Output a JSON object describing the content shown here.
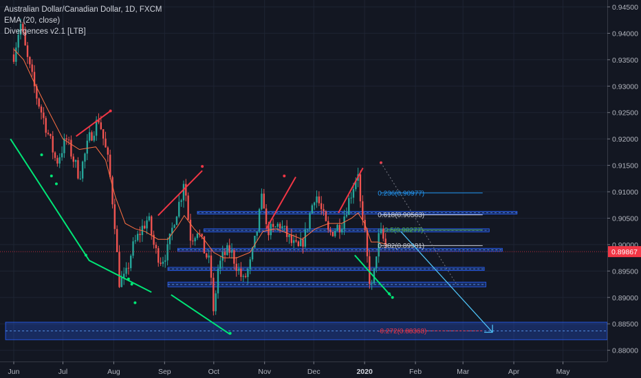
{
  "legend": {
    "symbol": "Australian Dollar/Canadian Dollar, 1D, FXCM",
    "ema": "EMA (20, close)",
    "div": "Divergences v2.1 [LTB]"
  },
  "chart_data": {
    "type": "candlestick",
    "ylim": [
      0.8775,
      0.9475
    ],
    "y_ticks": [
      "0.94500",
      "0.94000",
      "0.93500",
      "0.93000",
      "0.92500",
      "0.92000",
      "0.91500",
      "0.91000",
      "0.90500",
      "0.90000",
      "0.89500",
      "0.89000",
      "0.88500",
      "0.88000"
    ],
    "x_ticks": [
      {
        "label": "Jun",
        "d": 0
      },
      {
        "label": "Jul",
        "d": 30
      },
      {
        "label": "Aug",
        "d": 61
      },
      {
        "label": "Sep",
        "d": 92
      },
      {
        "label": "Oct",
        "d": 122
      },
      {
        "label": "Nov",
        "d": 153
      },
      {
        "label": "Dec",
        "d": 183
      },
      {
        "label": "2020",
        "d": 214,
        "bold": true
      },
      {
        "label": "Feb",
        "d": 245
      },
      {
        "label": "Mar",
        "d": 274
      },
      {
        "label": "Apr",
        "d": 305
      },
      {
        "label": "May",
        "d": 335
      }
    ],
    "current_price": {
      "label": "0.89867",
      "value": 0.89867,
      "color": "#f23645"
    },
    "close_path": [
      [
        0,
        0.936
      ],
      [
        4,
        0.942
      ],
      [
        8,
        0.9355
      ],
      [
        14,
        0.928
      ],
      [
        20,
        0.922
      ],
      [
        26,
        0.9155
      ],
      [
        32,
        0.92
      ],
      [
        40,
        0.913
      ],
      [
        46,
        0.92
      ],
      [
        52,
        0.924
      ],
      [
        58,
        0.915
      ],
      [
        62,
        0.903
      ],
      [
        64,
        0.893
      ],
      [
        68,
        0.8935
      ],
      [
        72,
        0.899
      ],
      [
        78,
        0.903
      ],
      [
        82,
        0.905
      ],
      [
        86,
        0.899
      ],
      [
        90,
        0.897
      ],
      [
        94,
        0.899
      ],
      [
        98,
        0.905
      ],
      [
        102,
        0.909
      ],
      [
        104,
        0.913
      ],
      [
        106,
        0.906
      ],
      [
        108,
        0.901
      ],
      [
        112,
        0.903
      ],
      [
        116,
        0.899
      ],
      [
        120,
        0.896
      ],
      [
        122,
        0.8855
      ],
      [
        124,
        0.895
      ],
      [
        128,
        0.898
      ],
      [
        132,
        0.899
      ],
      [
        136,
        0.896
      ],
      [
        140,
        0.893
      ],
      [
        144,
        0.896
      ],
      [
        148,
        0.902
      ],
      [
        152,
        0.91
      ],
      [
        154,
        0.903
      ],
      [
        158,
        0.9025
      ],
      [
        162,
        0.904
      ],
      [
        166,
        0.902
      ],
      [
        170,
        0.9
      ],
      [
        174,
        0.899
      ],
      [
        178,
        0.902
      ],
      [
        180,
        0.905
      ],
      [
        184,
        0.91
      ],
      [
        188,
        0.906
      ],
      [
        192,
        0.902
      ],
      [
        196,
        0.903
      ],
      [
        200,
        0.904
      ],
      [
        204,
        0.908
      ],
      [
        208,
        0.912
      ],
      [
        210,
        0.914
      ],
      [
        212,
        0.905
      ],
      [
        214,
        0.902
      ],
      [
        216,
        0.896
      ],
      [
        218,
        0.891
      ],
      [
        220,
        0.895
      ],
      [
        222,
        0.901
      ],
      [
        224,
        0.902
      ],
      [
        226,
        0.9005
      ],
      [
        228,
        0.899
      ]
    ],
    "ema_points": [
      [
        0,
        0.937
      ],
      [
        6,
        0.935
      ],
      [
        12,
        0.931
      ],
      [
        20,
        0.926
      ],
      [
        30,
        0.92
      ],
      [
        40,
        0.918
      ],
      [
        50,
        0.9185
      ],
      [
        56,
        0.916
      ],
      [
        62,
        0.909
      ],
      [
        68,
        0.904
      ],
      [
        74,
        0.903
      ],
      [
        80,
        0.9025
      ],
      [
        88,
        0.901
      ],
      [
        94,
        0.901
      ],
      [
        100,
        0.9035
      ],
      [
        104,
        0.9055
      ],
      [
        110,
        0.903
      ],
      [
        116,
        0.901
      ],
      [
        122,
        0.8985
      ],
      [
        128,
        0.8975
      ],
      [
        136,
        0.8975
      ],
      [
        144,
        0.8985
      ],
      [
        152,
        0.9025
      ],
      [
        160,
        0.903
      ],
      [
        168,
        0.902
      ],
      [
        176,
        0.901
      ],
      [
        184,
        0.903
      ],
      [
        192,
        0.904
      ],
      [
        200,
        0.904
      ],
      [
        206,
        0.905
      ],
      [
        210,
        0.906
      ],
      [
        214,
        0.904
      ],
      [
        218,
        0.9005
      ],
      [
        222,
        0.9005
      ],
      [
        228,
        0.9
      ]
    ],
    "zones": [
      {
        "d0": 112,
        "d1": 307,
        "y0": 0.9063,
        "y1": 0.9058
      },
      {
        "d0": 116,
        "d1": 290,
        "y0": 0.903,
        "y1": 0.9024
      },
      {
        "d0": 100,
        "d1": 298,
        "y0": 0.8993,
        "y1": 0.8987
      },
      {
        "d0": 94,
        "d1": 287,
        "y0": 0.8957,
        "y1": 0.8951
      },
      {
        "d0": 94,
        "d1": 288,
        "y0": 0.8929,
        "y1": 0.892
      },
      {
        "d0": -5,
        "d1": 380,
        "y0": 0.8853,
        "y1": 0.882
      }
    ],
    "fib_levels": [
      {
        "label": "0.236(0.90977)",
        "value": 0.90977,
        "color": "#2196f3",
        "d0": 222,
        "d1": 286
      },
      {
        "label": "0.618(0.90563)",
        "value": 0.90563,
        "color": "#d1d4dc",
        "d0": 222,
        "d1": 286
      },
      {
        "label": "0.5(0.90277)",
        "value": 0.90277,
        "color": "#4caf50",
        "d0": 226,
        "d1": 286
      },
      {
        "label": "0.382(0.89981)",
        "value": 0.89981,
        "color": "#d1d4dc",
        "d0": 222,
        "d1": 286
      },
      {
        "label": "-0.272(0.88368)",
        "value": 0.88368,
        "color": "#f23645",
        "d0": 222,
        "d1": 286
      }
    ],
    "divergence_lines": [
      {
        "color": "#f23645",
        "points": [
          [
            38,
            0.9205
          ],
          [
            59,
            0.9253
          ]
        ]
      },
      {
        "color": "#f23645",
        "points": [
          [
            88,
            0.9055
          ],
          [
            115,
            0.914
          ]
        ]
      },
      {
        "color": "#f23645",
        "points": [
          [
            154,
            0.903
          ],
          [
            172,
            0.9128
          ]
        ]
      },
      {
        "color": "#f23645",
        "points": [
          [
            198,
            0.906
          ],
          [
            213,
            0.9145
          ]
        ]
      },
      {
        "color": "#00e676",
        "points": [
          [
            -2,
            0.92
          ],
          [
            46,
            0.897
          ],
          [
            84,
            0.891
          ]
        ]
      },
      {
        "color": "#00e676",
        "points": [
          [
            96,
            0.8905
          ],
          [
            132,
            0.883
          ]
        ]
      },
      {
        "color": "#00e676",
        "points": [
          [
            208,
            0.898
          ],
          [
            230,
            0.8903
          ]
        ]
      }
    ],
    "projection": {
      "color": "#4fc3f7",
      "points": [
        [
          236,
          0.9025
        ],
        [
          292,
          0.8834
        ]
      ]
    },
    "bull_dots": [
      [
        17,
        0.917
      ],
      [
        23,
        0.913
      ],
      [
        26,
        0.9115
      ],
      [
        44,
        0.898
      ],
      [
        70,
        0.8935
      ],
      [
        72,
        0.8925
      ],
      [
        74,
        0.889
      ],
      [
        132,
        0.8832
      ],
      [
        229,
        0.8907
      ],
      [
        231,
        0.89
      ]
    ],
    "bear_dots": [
      [
        59,
        0.9253
      ],
      [
        115,
        0.9148
      ],
      [
        165,
        0.913
      ],
      [
        224,
        0.9155
      ]
    ]
  }
}
